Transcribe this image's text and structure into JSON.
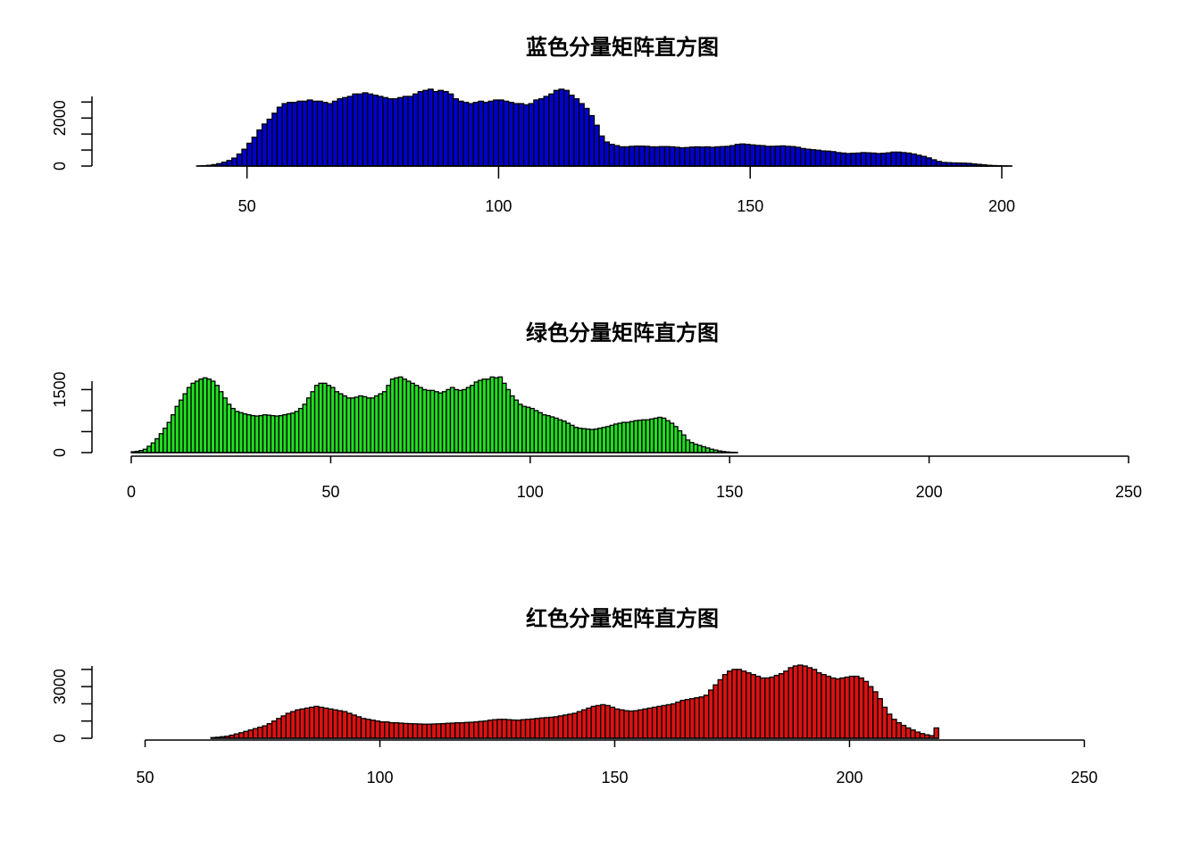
{
  "chart_data": [
    {
      "type": "bar",
      "title": "蓝色分量矩阵直方图",
      "color": "#0000cc",
      "xlim": [
        27,
        222
      ],
      "ylim": [
        0,
        2900
      ],
      "x_ticks": [
        50,
        100,
        150,
        200
      ],
      "y_ticks": [
        0,
        2000
      ],
      "bin_start": 40,
      "values": [
        5,
        15,
        30,
        60,
        100,
        160,
        230,
        330,
        500,
        700,
        950,
        1200,
        1500,
        1750,
        1950,
        2200,
        2450,
        2600,
        2650,
        2650,
        2700,
        2700,
        2750,
        2700,
        2700,
        2650,
        2600,
        2700,
        2800,
        2850,
        2900,
        3000,
        3000,
        3050,
        3000,
        2950,
        2900,
        2850,
        2800,
        2800,
        2850,
        2900,
        2900,
        3000,
        3100,
        3150,
        3200,
        3100,
        3150,
        3100,
        3000,
        2800,
        2700,
        2650,
        2600,
        2650,
        2700,
        2650,
        2700,
        2750,
        2750,
        2700,
        2650,
        2600,
        2600,
        2550,
        2600,
        2750,
        2800,
        2900,
        3000,
        3150,
        3200,
        3150,
        2950,
        2800,
        2600,
        2400,
        2100,
        1700,
        1250,
        1000,
        900,
        850,
        800,
        800,
        820,
        830,
        830,
        820,
        800,
        800,
        810,
        810,
        800,
        780,
        760,
        770,
        790,
        800,
        790,
        800,
        780,
        800,
        810,
        820,
        850,
        900,
        920,
        900,
        880,
        860,
        850,
        820,
        820,
        830,
        840,
        820,
        810,
        780,
        730,
        700,
        680,
        660,
        630,
        620,
        600,
        560,
        540,
        520,
        530,
        540,
        560,
        550,
        540,
        520,
        530,
        550,
        580,
        580,
        560,
        540,
        500,
        450,
        400,
        340,
        260,
        190,
        150,
        140,
        130,
        125,
        120,
        110,
        90,
        70,
        50,
        30,
        20,
        12,
        8,
        4
      ],
      "blank": null
    },
    {
      "type": "bar",
      "title": "绿色分量矩阵直方图",
      "color": "#22dd22",
      "xlim": [
        0,
        250
      ],
      "ylim": [
        0,
        1700
      ],
      "x_ticks": [
        0,
        50,
        100,
        150,
        200,
        250
      ],
      "y_ticks": [
        0,
        1500
      ],
      "bin_start": 0,
      "values": [
        20,
        30,
        50,
        80,
        150,
        230,
        330,
        450,
        580,
        720,
        900,
        1100,
        1250,
        1400,
        1550,
        1650,
        1700,
        1750,
        1780,
        1750,
        1700,
        1600,
        1450,
        1300,
        1150,
        1050,
        980,
        950,
        920,
        900,
        880,
        870,
        880,
        900,
        890,
        880,
        870,
        880,
        900,
        920,
        940,
        980,
        1050,
        1150,
        1300,
        1450,
        1600,
        1650,
        1650,
        1600,
        1550,
        1450,
        1400,
        1350,
        1300,
        1300,
        1320,
        1350,
        1330,
        1300,
        1300,
        1350,
        1400,
        1450,
        1600,
        1750,
        1780,
        1800,
        1750,
        1700,
        1650,
        1600,
        1550,
        1500,
        1480,
        1480,
        1450,
        1420,
        1450,
        1500,
        1550,
        1500,
        1480,
        1500,
        1550,
        1600,
        1680,
        1720,
        1750,
        1750,
        1800,
        1780,
        1800,
        1650,
        1500,
        1350,
        1250,
        1150,
        1100,
        1080,
        1050,
        1000,
        950,
        900,
        880,
        850,
        820,
        780,
        750,
        700,
        650,
        600,
        580,
        570,
        560,
        550,
        560,
        580,
        600,
        620,
        650,
        680,
        700,
        720,
        720,
        740,
        760,
        770,
        780,
        780,
        800,
        820,
        840,
        820,
        760,
        700,
        620,
        520,
        420,
        300,
        240,
        200,
        170,
        140,
        110,
        80,
        60,
        40,
        25,
        15,
        8,
        4
      ],
      "blank": null
    },
    {
      "type": "bar",
      "title": "红色分量矩阵直方图",
      "color": "#dd1111",
      "xlim": [
        48,
        256
      ],
      "ylim": [
        0,
        4200
      ],
      "x_ticks": [
        50,
        100,
        150,
        200,
        250
      ],
      "y_ticks": [
        0,
        3000
      ],
      "bin_start": 64,
      "values": [
        40,
        60,
        90,
        120,
        180,
        250,
        320,
        400,
        480,
        560,
        640,
        720,
        850,
        1000,
        1150,
        1300,
        1450,
        1550,
        1650,
        1700,
        1750,
        1800,
        1850,
        1800,
        1750,
        1700,
        1650,
        1600,
        1550,
        1450,
        1350,
        1250,
        1150,
        1100,
        1050,
        1000,
        950,
        950,
        900,
        900,
        880,
        860,
        850,
        840,
        830,
        820,
        820,
        830,
        840,
        850,
        870,
        880,
        900,
        900,
        920,
        930,
        950,
        980,
        1000,
        1050,
        1080,
        1100,
        1100,
        1080,
        1060,
        1050,
        1080,
        1100,
        1120,
        1150,
        1180,
        1200,
        1220,
        1250,
        1300,
        1350,
        1400,
        1450,
        1550,
        1650,
        1750,
        1850,
        1900,
        1950,
        1900,
        1800,
        1700,
        1650,
        1600,
        1580,
        1600,
        1650,
        1700,
        1750,
        1800,
        1850,
        1900,
        1950,
        2000,
        2100,
        2200,
        2250,
        2300,
        2350,
        2400,
        2500,
        2800,
        3100,
        3400,
        3700,
        3900,
        4000,
        4000,
        3900,
        3800,
        3700,
        3600,
        3500,
        3500,
        3550,
        3650,
        3750,
        3900,
        4100,
        4200,
        4250,
        4200,
        4100,
        4000,
        3800,
        3700,
        3600,
        3500,
        3450,
        3500,
        3550,
        3600,
        3600,
        3500,
        3300,
        3000,
        2700,
        2300,
        1800,
        1400,
        1100,
        900,
        750,
        600,
        480,
        360,
        270,
        200,
        150,
        600
      ],
      "blank": 1
    }
  ]
}
